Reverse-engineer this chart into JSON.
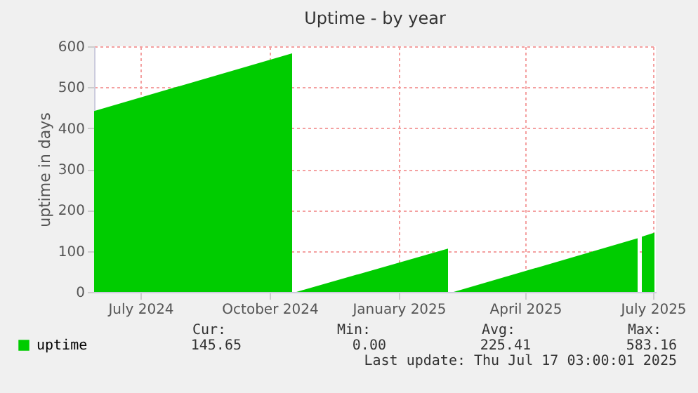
{
  "chart_data": {
    "type": "area",
    "title": "Uptime - by year",
    "ylabel": "uptime in days",
    "x": [
      "2024-06-12",
      "2024-10-31",
      "2024-11-02",
      "2024-11-03",
      "2025-02-19",
      "2025-02-21",
      "2025-02-23",
      "2025-07-04",
      "2025-07-05",
      "2025-07-07",
      "2025-07-16"
    ],
    "series": [
      {
        "name": "uptime",
        "color": "#00cc00",
        "values": [
          442,
          583,
          null,
          0,
          106,
          null,
          0,
          131,
          null,
          135,
          145
        ]
      }
    ],
    "xlim": [
      "2024-06-12",
      "2025-07-17"
    ],
    "xticks": [
      {
        "value": "2024-07-15",
        "label": "July 2024"
      },
      {
        "value": "2024-10-15",
        "label": "October 2024"
      },
      {
        "value": "2025-01-15",
        "label": "January 2025"
      },
      {
        "value": "2025-04-15",
        "label": "April 2025"
      },
      {
        "value": "2025-07-15",
        "label": "July 2025"
      }
    ],
    "ylim": [
      0,
      600
    ],
    "yticks": [
      0,
      100,
      200,
      300,
      400,
      500,
      600
    ],
    "grid": true,
    "legend": "bottom left",
    "annotations": [
      "Cur:",
      "Min:",
      "Avg:",
      "Max:",
      "145.65",
      "0.00",
      "225.41",
      "583.16",
      "Last update: Thu Jul 17 03:00:01 2025"
    ]
  }
}
